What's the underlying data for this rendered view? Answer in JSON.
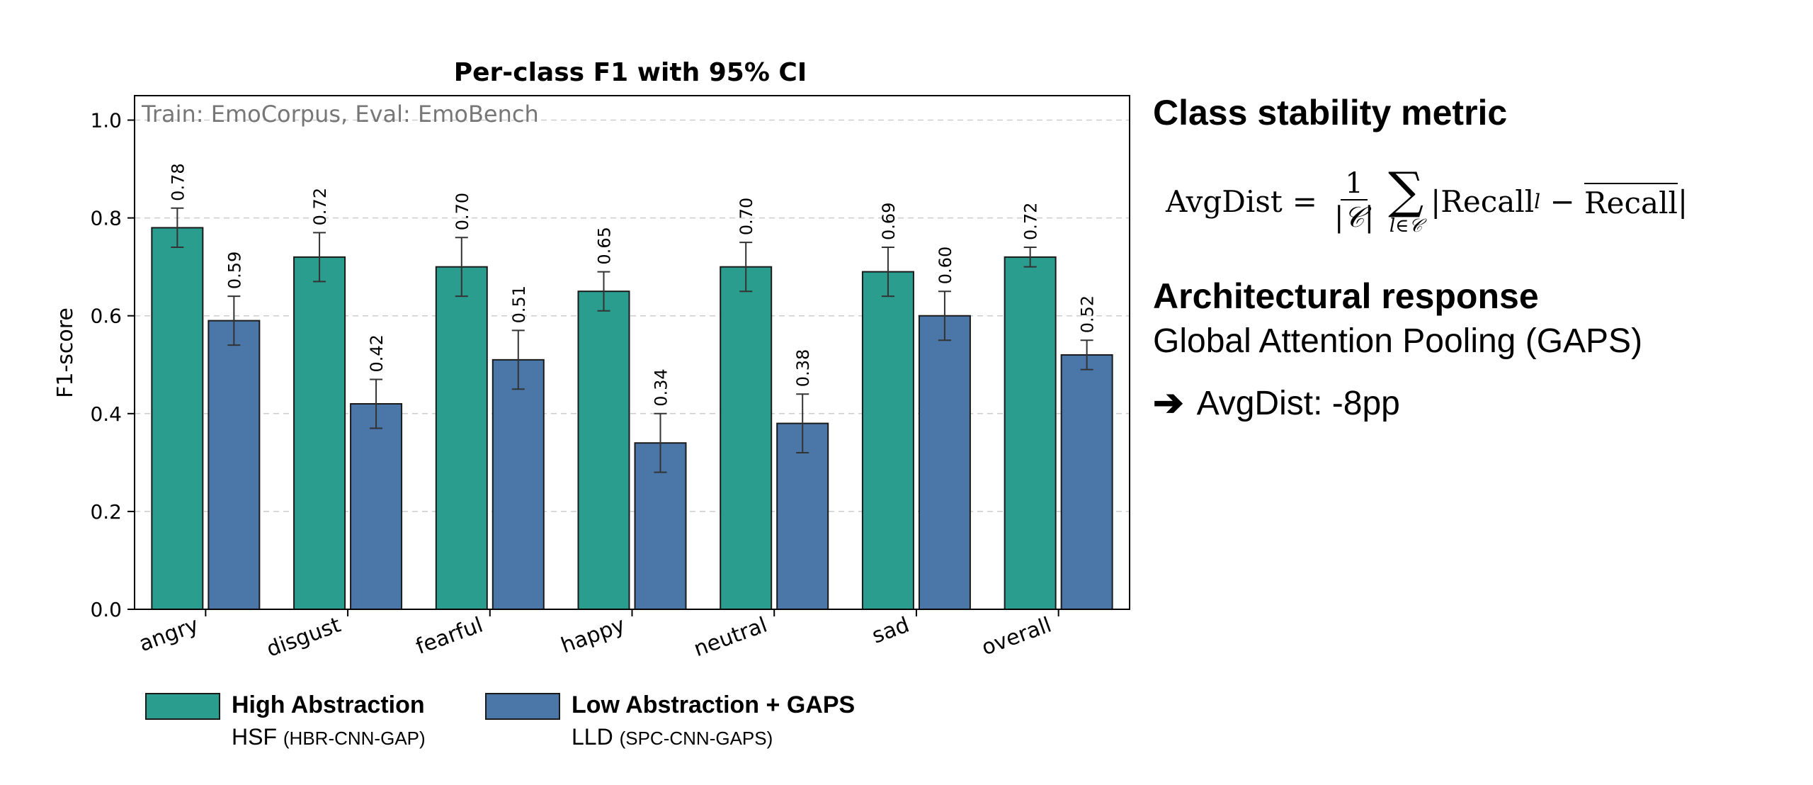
{
  "chart_data": {
    "type": "bar",
    "title": "Per-class F1 with 95% CI",
    "subtitle": "Train: EmoCorpus, Eval: EmoBench",
    "ylabel": "F1-score",
    "xlabel": "",
    "ylim": [
      0,
      1.05
    ],
    "yticks": [
      "0.0",
      "0.2",
      "0.4",
      "0.6",
      "0.8",
      "1.0"
    ],
    "grid": "horizontal dashed",
    "categories": [
      "angry",
      "disgust",
      "fearful",
      "happy",
      "neutral",
      "sad",
      "overall"
    ],
    "series": [
      {
        "name": "High Abstraction",
        "sublabel": "HSF",
        "sublabel_small": "(HBR-CNN-GAP)",
        "color": "#2a9d8f",
        "values": [
          0.78,
          0.72,
          0.7,
          0.65,
          0.7,
          0.69,
          0.72
        ],
        "labels": [
          "0.78",
          "0.72",
          "0.70",
          "0.65",
          "0.70",
          "0.69",
          "0.72"
        ],
        "ci_low": [
          0.74,
          0.67,
          0.64,
          0.61,
          0.65,
          0.64,
          0.7
        ],
        "ci_high": [
          0.82,
          0.77,
          0.76,
          0.69,
          0.75,
          0.74,
          0.74
        ]
      },
      {
        "name": "Low Abstraction + GAPS",
        "sublabel": "LLD",
        "sublabel_small": "(SPC-CNN-GAPS)",
        "color": "#4a76a8",
        "values": [
          0.59,
          0.42,
          0.51,
          0.34,
          0.38,
          0.6,
          0.52
        ],
        "labels": [
          "0.59",
          "0.42",
          "0.51",
          "0.34",
          "0.38",
          "0.60",
          "0.52"
        ],
        "ci_low": [
          0.54,
          0.37,
          0.45,
          0.28,
          0.32,
          0.55,
          0.49
        ],
        "ci_high": [
          0.64,
          0.47,
          0.57,
          0.4,
          0.44,
          0.65,
          0.55
        ]
      }
    ]
  },
  "side": {
    "heading1": "Class stability metric",
    "formula": {
      "lhs": "AvgDist",
      "eq": "=",
      "num": "1",
      "den": "|𝒞|",
      "sigma": "∑",
      "sum_sub": "l∈𝒞",
      "term": "|Recall",
      "term_sub": "l",
      "minus": " − ",
      "mean": "Recall",
      "close": "|"
    },
    "heading2": "Architectural response",
    "response": "Global Attention Pooling (GAPS)",
    "arrow": "➔",
    "result": "AvgDist: -8pp"
  }
}
